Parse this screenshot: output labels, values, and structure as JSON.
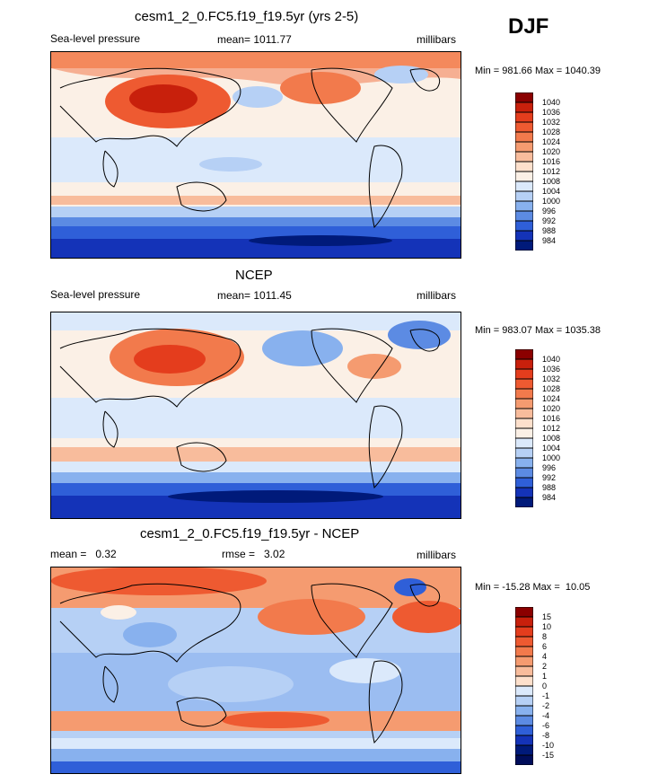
{
  "season": "DJF",
  "panels": [
    {
      "title": "cesm1_2_0.FC5.f19_f19.5yr (yrs 2-5)",
      "left_label": "Sea-level pressure",
      "center_label": "mean= 1011.77",
      "right_label": "millibars",
      "minmax": "Min = 981.66 Max = 1040.39",
      "map": "model"
    },
    {
      "title": "NCEP",
      "left_label": "Sea-level pressure",
      "center_label": "mean= 1011.45",
      "right_label": "millibars",
      "minmax": "Min = 983.07 Max = 1035.38",
      "map": "obs"
    },
    {
      "title": "cesm1_2_0.FC5.f19_f19.5yr - NCEP",
      "left_label": "mean =   0.32",
      "center_label": "rmse =   3.02",
      "right_label": "millibars",
      "minmax": "Min = -15.28 Max =  10.05",
      "map": "diff"
    }
  ],
  "colorbar_abs": {
    "labels": [
      "1040",
      "1036",
      "1032",
      "1028",
      "1024",
      "1020",
      "1016",
      "1012",
      "1008",
      "1004",
      "1000",
      "996",
      "992",
      "988",
      "984"
    ],
    "colors": [
      "#8b0000",
      "#c8200c",
      "#e43d1d",
      "#ee5a31",
      "#f27a4c",
      "#f59b70",
      "#f8bc9c",
      "#fde0cc",
      "#fbf0e6",
      "#dbe9fb",
      "#b6d0f5",
      "#88b1ee",
      "#5c8be3",
      "#2f5fd8",
      "#1433b8",
      "#001a7a"
    ]
  },
  "colorbar_diff": {
    "labels": [
      "15",
      "10",
      "8",
      "6",
      "4",
      "2",
      "1",
      "0",
      "-1",
      "-2",
      "-4",
      "-6",
      "-8",
      "-10",
      "-15"
    ],
    "colors": [
      "#8b0000",
      "#c8200c",
      "#e43d1d",
      "#ee5a31",
      "#f27a4c",
      "#f59b70",
      "#f8bc9c",
      "#fde0cc",
      "#dbe9fb",
      "#b6d0f5",
      "#88b1ee",
      "#5c8be3",
      "#2f5fd8",
      "#1433b8",
      "#001a7a",
      "#000d5a"
    ]
  }
}
